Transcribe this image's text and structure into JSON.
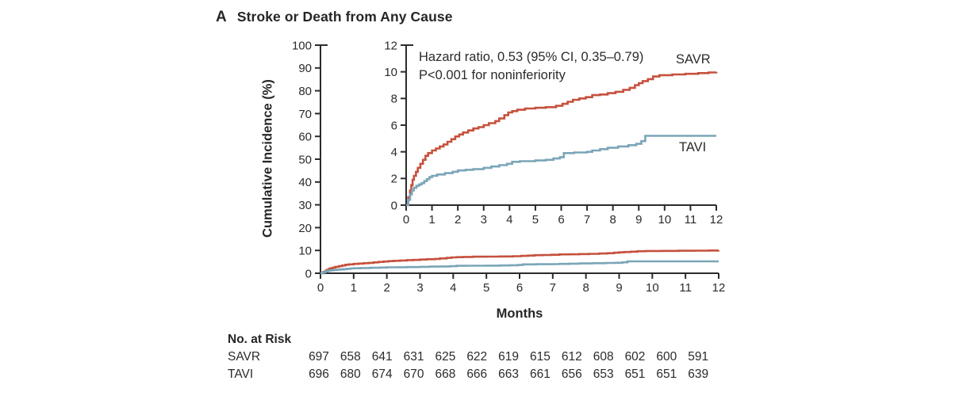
{
  "panel": {
    "label": "A",
    "title": "Stroke or Death from Any Cause"
  },
  "chart_data": {
    "type": "line",
    "subtype": "kaplan-meier-cumulative-incidence-step-curves",
    "title": "Stroke or Death from Any Cause",
    "xlabel": "Months",
    "ylabel": "Cumulative Incidence (%)",
    "axis_color": "#2b2b2b",
    "tick_label_color": "#2b2b2b",
    "main_axes": {
      "xlim": [
        0,
        12
      ],
      "ylim": [
        0,
        100
      ],
      "x_ticks": [
        0,
        1,
        2,
        3,
        4,
        5,
        6,
        7,
        8,
        9,
        10,
        11,
        12
      ],
      "y_ticks": [
        0,
        10,
        20,
        30,
        40,
        50,
        60,
        70,
        80,
        90,
        100
      ]
    },
    "inset_axes": {
      "xlim": [
        0,
        12
      ],
      "ylim": [
        0,
        12
      ],
      "x_ticks": [
        0,
        1,
        2,
        3,
        4,
        5,
        6,
        7,
        8,
        9,
        10,
        11,
        12
      ],
      "y_ticks": [
        0,
        2,
        4,
        6,
        8,
        10,
        12
      ]
    },
    "annotation": {
      "line1": "Hazard ratio, 0.53 (95% CI, 0.35–0.79)",
      "line2": "P<0.001 for noninferiority"
    },
    "series": [
      {
        "name": "SAVR",
        "color": "#c5513d",
        "points": [
          [
            0,
            0
          ],
          [
            0.08,
            0.6
          ],
          [
            0.15,
            1.1
          ],
          [
            0.2,
            1.5
          ],
          [
            0.25,
            1.9
          ],
          [
            0.3,
            2.2
          ],
          [
            0.38,
            2.5
          ],
          [
            0.45,
            2.8
          ],
          [
            0.55,
            3.1
          ],
          [
            0.65,
            3.4
          ],
          [
            0.75,
            3.7
          ],
          [
            0.85,
            3.9
          ],
          [
            1.0,
            4.1
          ],
          [
            1.15,
            4.25
          ],
          [
            1.3,
            4.4
          ],
          [
            1.45,
            4.55
          ],
          [
            1.6,
            4.75
          ],
          [
            1.75,
            4.95
          ],
          [
            1.9,
            5.15
          ],
          [
            2.05,
            5.3
          ],
          [
            2.2,
            5.45
          ],
          [
            2.4,
            5.6
          ],
          [
            2.6,
            5.75
          ],
          [
            2.8,
            5.85
          ],
          [
            3.0,
            6.0
          ],
          [
            3.2,
            6.15
          ],
          [
            3.45,
            6.3
          ],
          [
            3.6,
            6.5
          ],
          [
            3.8,
            6.75
          ],
          [
            3.95,
            6.95
          ],
          [
            4.1,
            7.05
          ],
          [
            4.3,
            7.15
          ],
          [
            4.6,
            7.25
          ],
          [
            5.0,
            7.3
          ],
          [
            5.4,
            7.35
          ],
          [
            5.8,
            7.45
          ],
          [
            6.05,
            7.6
          ],
          [
            6.25,
            7.75
          ],
          [
            6.45,
            7.9
          ],
          [
            6.7,
            8.0
          ],
          [
            6.95,
            8.1
          ],
          [
            7.2,
            8.25
          ],
          [
            7.5,
            8.3
          ],
          [
            7.8,
            8.4
          ],
          [
            8.1,
            8.5
          ],
          [
            8.4,
            8.65
          ],
          [
            8.65,
            8.8
          ],
          [
            8.85,
            9.0
          ],
          [
            9.0,
            9.15
          ],
          [
            9.15,
            9.3
          ],
          [
            9.35,
            9.45
          ],
          [
            9.55,
            9.65
          ],
          [
            9.8,
            9.75
          ],
          [
            10.3,
            9.8
          ],
          [
            10.8,
            9.85
          ],
          [
            11.3,
            9.9
          ],
          [
            11.7,
            9.95
          ],
          [
            12,
            10.0
          ]
        ]
      },
      {
        "name": "TAVI",
        "color": "#7aa5b8",
        "points": [
          [
            0,
            0
          ],
          [
            0.08,
            0.4
          ],
          [
            0.15,
            0.8
          ],
          [
            0.22,
            1.1
          ],
          [
            0.3,
            1.3
          ],
          [
            0.4,
            1.45
          ],
          [
            0.5,
            1.55
          ],
          [
            0.6,
            1.65
          ],
          [
            0.7,
            1.8
          ],
          [
            0.8,
            1.95
          ],
          [
            0.9,
            2.1
          ],
          [
            1.0,
            2.2
          ],
          [
            1.2,
            2.3
          ],
          [
            1.5,
            2.4
          ],
          [
            1.8,
            2.5
          ],
          [
            2.0,
            2.6
          ],
          [
            2.3,
            2.65
          ],
          [
            2.6,
            2.7
          ],
          [
            3.0,
            2.8
          ],
          [
            3.3,
            2.9
          ],
          [
            3.6,
            3.0
          ],
          [
            3.9,
            3.1
          ],
          [
            4.1,
            3.25
          ],
          [
            4.4,
            3.3
          ],
          [
            5.0,
            3.35
          ],
          [
            5.4,
            3.4
          ],
          [
            5.7,
            3.5
          ],
          [
            5.95,
            3.6
          ],
          [
            6.1,
            3.9
          ],
          [
            6.5,
            3.95
          ],
          [
            7.0,
            4.0
          ],
          [
            7.2,
            4.1
          ],
          [
            7.5,
            4.2
          ],
          [
            7.8,
            4.3
          ],
          [
            8.2,
            4.4
          ],
          [
            8.6,
            4.5
          ],
          [
            8.9,
            4.6
          ],
          [
            9.1,
            4.8
          ],
          [
            9.25,
            5.2
          ],
          [
            12,
            5.2
          ]
        ]
      }
    ],
    "no_at_risk": {
      "header": "No. at Risk",
      "months": [
        0,
        1,
        2,
        3,
        4,
        5,
        6,
        7,
        8,
        9,
        10,
        11,
        12
      ],
      "rows": [
        {
          "label": "SAVR",
          "counts": [
            697,
            658,
            641,
            631,
            625,
            622,
            619,
            615,
            612,
            608,
            602,
            600,
            591
          ]
        },
        {
          "label": "TAVI",
          "counts": [
            696,
            680,
            674,
            670,
            668,
            666,
            663,
            661,
            656,
            653,
            651,
            651,
            639
          ]
        }
      ]
    }
  }
}
